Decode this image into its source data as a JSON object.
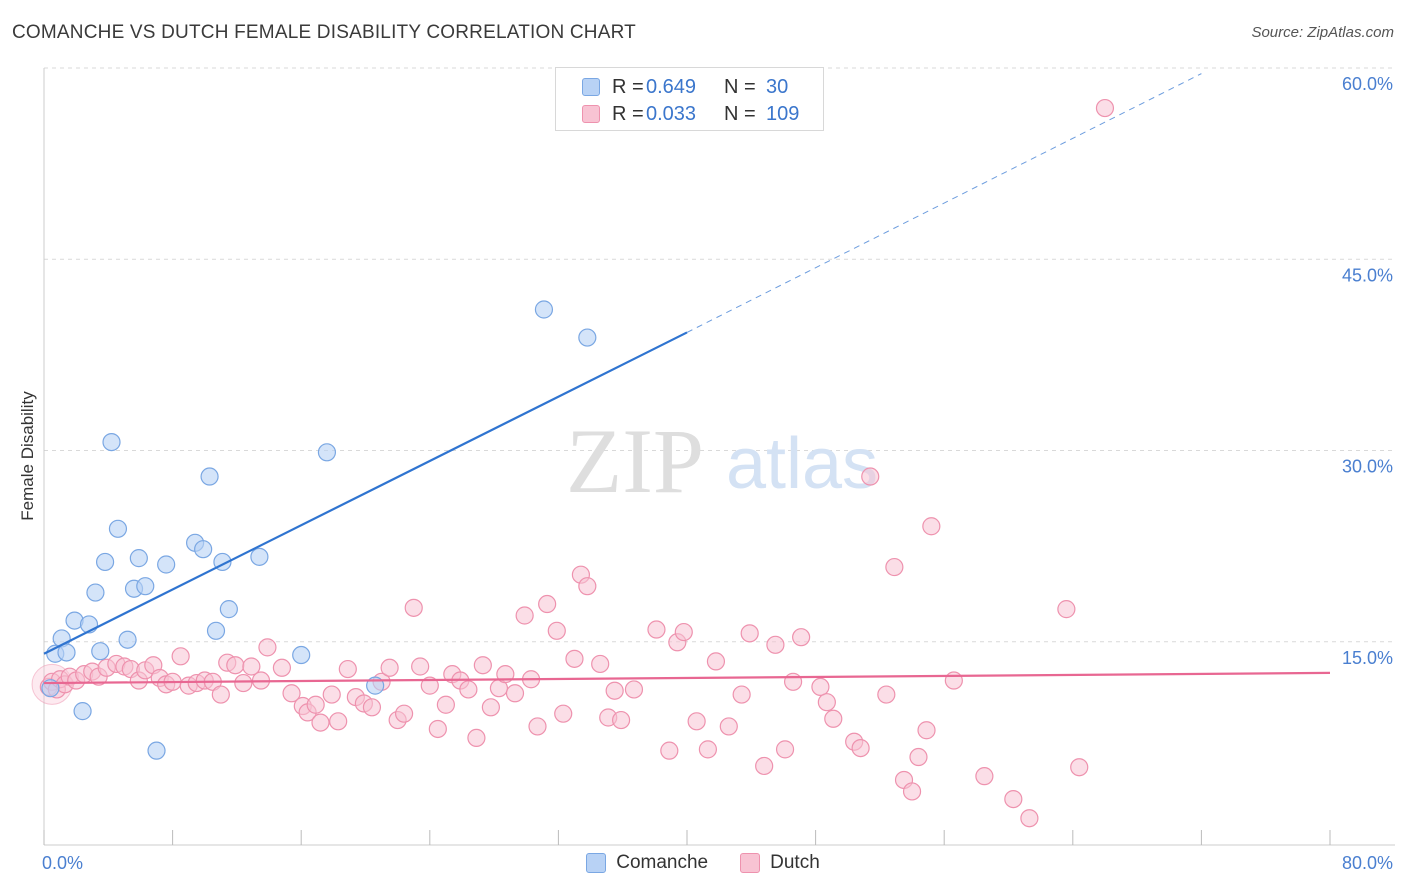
{
  "header": {
    "title": "COMANCHE VS DUTCH FEMALE DISABILITY CORRELATION CHART",
    "source": "Source: ZipAtlas.com"
  },
  "watermark": {
    "zip": "ZIP",
    "atlas": "atlas"
  },
  "legend": {
    "rows": [
      {
        "r_label": "R =",
        "r_value": "0.649",
        "n_label": "N =",
        "n_value": "30"
      },
      {
        "r_label": "R =",
        "r_value": "0.033",
        "n_label": "N =",
        "n_value": "109"
      }
    ],
    "items": [
      "Comanche",
      "Dutch"
    ]
  },
  "colors": {
    "comanche_fill": "#b8d2f5",
    "comanche_stroke": "#7aa7e3",
    "comanche_line": "#2f74d0",
    "dutch_fill": "#f8c3d3",
    "dutch_stroke": "#ee92ae",
    "dutch_line": "#e86792",
    "tick_text": "#4a7fd0",
    "grid": "#d9d9d9"
  },
  "chart_data": {
    "type": "scatter",
    "title": "COMANCHE VS DUTCH FEMALE DISABILITY CORRELATION CHART",
    "xlabel": "",
    "ylabel": "Female Disability",
    "xlim": [
      0,
      80
    ],
    "ylim": [
      0,
      60
    ],
    "x_tick_labels": [
      "0.0%",
      "80.0%"
    ],
    "y_ticks": [
      15,
      30,
      45,
      60
    ],
    "y_tick_labels": [
      "15.0%",
      "30.0%",
      "45.0%",
      "60.0%"
    ],
    "grid": "horizontal dashed",
    "legend_position": "top-center",
    "series": [
      {
        "name": "Comanche",
        "r": 0.649,
        "n": 30,
        "trend": {
          "x": [
            0,
            40
          ],
          "y": [
            15.0,
            40.2
          ],
          "extended_to": [
            72,
            60.5
          ]
        },
        "points": [
          [
            0.4,
            12.3
          ],
          [
            0.7,
            15.0
          ],
          [
            1.1,
            16.2
          ],
          [
            1.4,
            15.1
          ],
          [
            1.9,
            17.6
          ],
          [
            2.4,
            10.5
          ],
          [
            2.8,
            17.3
          ],
          [
            3.2,
            19.8
          ],
          [
            3.5,
            15.2
          ],
          [
            3.8,
            22.2
          ],
          [
            4.2,
            31.6
          ],
          [
            4.6,
            24.8
          ],
          [
            5.2,
            16.1
          ],
          [
            5.6,
            20.1
          ],
          [
            5.9,
            22.5
          ],
          [
            6.3,
            20.3
          ],
          [
            7.0,
            7.4
          ],
          [
            7.6,
            22.0
          ],
          [
            9.4,
            23.7
          ],
          [
            9.9,
            23.2
          ],
          [
            10.3,
            28.9
          ],
          [
            10.7,
            16.8
          ],
          [
            11.1,
            22.2
          ],
          [
            11.5,
            18.5
          ],
          [
            13.4,
            22.6
          ],
          [
            16.0,
            14.9
          ],
          [
            17.6,
            30.8
          ],
          [
            20.6,
            12.5
          ],
          [
            31.1,
            42.0
          ],
          [
            33.8,
            39.8
          ]
        ]
      },
      {
        "name": "Dutch",
        "r": 0.033,
        "n": 109,
        "trend": {
          "x": [
            0,
            80
          ],
          "y": [
            12.7,
            13.5
          ]
        },
        "points": [
          [
            0.3,
            12.4
          ],
          [
            0.5,
            12.8
          ],
          [
            0.8,
            12.2
          ],
          [
            1.0,
            13.0
          ],
          [
            1.3,
            12.6
          ],
          [
            1.6,
            13.2
          ],
          [
            2.0,
            12.9
          ],
          [
            2.5,
            13.4
          ],
          [
            3.0,
            13.6
          ],
          [
            3.4,
            13.2
          ],
          [
            3.9,
            13.9
          ],
          [
            4.5,
            14.2
          ],
          [
            5.0,
            14.0
          ],
          [
            5.4,
            13.8
          ],
          [
            5.9,
            12.9
          ],
          [
            6.3,
            13.7
          ],
          [
            6.8,
            14.1
          ],
          [
            7.2,
            13.1
          ],
          [
            7.6,
            12.6
          ],
          [
            8.0,
            12.8
          ],
          [
            8.5,
            14.8
          ],
          [
            9.0,
            12.5
          ],
          [
            9.5,
            12.7
          ],
          [
            10.0,
            12.9
          ],
          [
            10.5,
            12.8
          ],
          [
            11.0,
            11.8
          ],
          [
            11.4,
            14.3
          ],
          [
            11.9,
            14.1
          ],
          [
            12.4,
            12.7
          ],
          [
            12.9,
            14.0
          ],
          [
            13.5,
            12.9
          ],
          [
            13.9,
            15.5
          ],
          [
            14.8,
            13.9
          ],
          [
            15.4,
            11.9
          ],
          [
            16.1,
            10.9
          ],
          [
            16.4,
            10.4
          ],
          [
            16.9,
            11.0
          ],
          [
            17.2,
            9.6
          ],
          [
            17.9,
            11.8
          ],
          [
            18.3,
            9.7
          ],
          [
            18.9,
            13.8
          ],
          [
            19.4,
            11.6
          ],
          [
            19.9,
            11.1
          ],
          [
            20.4,
            10.8
          ],
          [
            21.0,
            12.8
          ],
          [
            21.5,
            13.9
          ],
          [
            22.0,
            9.8
          ],
          [
            22.4,
            10.3
          ],
          [
            23.0,
            18.6
          ],
          [
            23.4,
            14.0
          ],
          [
            24.0,
            12.5
          ],
          [
            24.5,
            9.1
          ],
          [
            25.0,
            11.0
          ],
          [
            25.4,
            13.4
          ],
          [
            25.9,
            12.9
          ],
          [
            26.4,
            12.2
          ],
          [
            26.9,
            8.4
          ],
          [
            27.3,
            14.1
          ],
          [
            27.8,
            10.8
          ],
          [
            28.3,
            12.3
          ],
          [
            28.7,
            13.4
          ],
          [
            29.3,
            11.9
          ],
          [
            29.9,
            18.0
          ],
          [
            30.3,
            13.0
          ],
          [
            30.7,
            9.3
          ],
          [
            31.3,
            18.9
          ],
          [
            31.9,
            16.8
          ],
          [
            32.3,
            10.3
          ],
          [
            33.0,
            14.6
          ],
          [
            33.4,
            21.2
          ],
          [
            33.8,
            20.3
          ],
          [
            34.6,
            14.2
          ],
          [
            35.1,
            10.0
          ],
          [
            35.5,
            12.1
          ],
          [
            35.9,
            9.8
          ],
          [
            36.7,
            12.2
          ],
          [
            38.1,
            16.9
          ],
          [
            38.9,
            7.4
          ],
          [
            39.4,
            15.9
          ],
          [
            39.8,
            16.7
          ],
          [
            40.6,
            9.7
          ],
          [
            41.3,
            7.5
          ],
          [
            41.8,
            14.4
          ],
          [
            42.6,
            9.3
          ],
          [
            43.4,
            11.8
          ],
          [
            43.9,
            16.6
          ],
          [
            44.8,
            6.2
          ],
          [
            45.5,
            15.7
          ],
          [
            46.1,
            7.5
          ],
          [
            46.6,
            12.8
          ],
          [
            47.1,
            16.3
          ],
          [
            48.3,
            12.4
          ],
          [
            48.7,
            11.2
          ],
          [
            49.1,
            9.9
          ],
          [
            50.4,
            8.1
          ],
          [
            50.8,
            7.6
          ],
          [
            51.4,
            28.9
          ],
          [
            52.4,
            11.8
          ],
          [
            52.9,
            21.8
          ],
          [
            53.5,
            5.1
          ],
          [
            54.0,
            4.2
          ],
          [
            54.4,
            6.9
          ],
          [
            54.9,
            9.0
          ],
          [
            55.2,
            25.0
          ],
          [
            56.6,
            12.9
          ],
          [
            58.5,
            5.4
          ],
          [
            60.3,
            3.6
          ],
          [
            61.3,
            2.1
          ],
          [
            63.6,
            18.5
          ],
          [
            64.4,
            6.1
          ],
          [
            66.0,
            57.8
          ]
        ]
      }
    ]
  }
}
